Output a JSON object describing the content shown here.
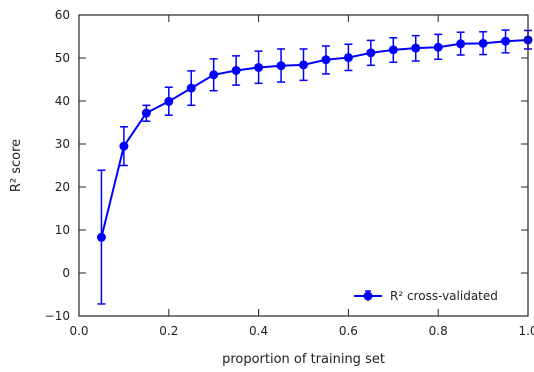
{
  "chart_data": {
    "type": "line",
    "xlabel": "proportion of training set",
    "ylabel": "R² score",
    "xlim": [
      0.0,
      1.0
    ],
    "ylim": [
      -10,
      60
    ],
    "xticks": [
      "0.0",
      "0.2",
      "0.4",
      "0.6",
      "0.8",
      "1.0"
    ],
    "yticks": [
      "−10",
      "0",
      "10",
      "20",
      "30",
      "40",
      "50",
      "60"
    ],
    "grid": false,
    "legend_position": "lower-right",
    "series": [
      {
        "name": "R² cross-validated",
        "color": "#0000ff",
        "x": [
          0.05,
          0.1,
          0.15,
          0.2,
          0.25,
          0.3,
          0.35,
          0.4,
          0.45,
          0.5,
          0.55,
          0.6,
          0.65,
          0.7,
          0.75,
          0.8,
          0.85,
          0.9,
          0.95,
          1.0
        ],
        "y": [
          8.3,
          29.5,
          37.2,
          39.9,
          43.0,
          46.1,
          47.1,
          47.8,
          48.2,
          48.4,
          49.6,
          50.1,
          51.2,
          51.9,
          52.3,
          52.5,
          53.3,
          53.4,
          53.9,
          54.2
        ],
        "err_low": [
          -7.2,
          25.0,
          35.3,
          36.7,
          39.0,
          42.4,
          43.7,
          44.1,
          44.4,
          44.8,
          46.3,
          47.1,
          48.3,
          49.0,
          49.3,
          49.7,
          50.7,
          50.8,
          51.2,
          52.1
        ],
        "err_high": [
          23.9,
          34.0,
          39.0,
          43.2,
          47.0,
          49.8,
          50.5,
          51.6,
          52.1,
          52.1,
          52.8,
          53.2,
          54.1,
          54.7,
          55.2,
          55.5,
          56.0,
          56.1,
          56.5,
          56.4
        ]
      }
    ]
  }
}
